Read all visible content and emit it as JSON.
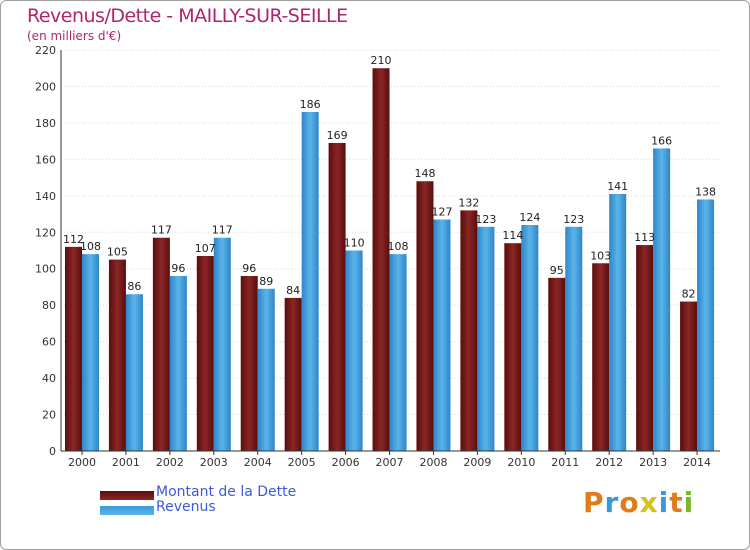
{
  "header": {
    "title": "Revenus/Dette - MAILLY-SUR-SEILLE",
    "subtitle": "(en milliers d'€)"
  },
  "colors": {
    "debt": "#7a1a1a",
    "revenue": "#3a9ad9",
    "title": "#b0246e",
    "legend_text": "#3b5bdb"
  },
  "legend": {
    "debt_label": "Montant de la Dette",
    "revenue_label": "Revenus"
  },
  "logo": {
    "text": "Proxiti"
  },
  "chart_data": {
    "type": "bar",
    "title": "Revenus/Dette - MAILLY-SUR-SEILLE",
    "subtitle": "(en milliers d'€)",
    "xlabel": "",
    "ylabel": "",
    "ylim": [
      0,
      220
    ],
    "yticks": [
      0,
      20,
      40,
      60,
      80,
      100,
      120,
      140,
      160,
      180,
      200,
      220
    ],
    "grid": true,
    "legend_position": "bottom-left",
    "categories": [
      "2000",
      "2001",
      "2002",
      "2003",
      "2004",
      "2005",
      "2006",
      "2007",
      "2008",
      "2009",
      "2010",
      "2011",
      "2012",
      "2013",
      "2014"
    ],
    "series": [
      {
        "name": "Montant de la Dette",
        "values": [
          112,
          105,
          117,
          107,
          96,
          84,
          169,
          210,
          148,
          132,
          114,
          95,
          103,
          113,
          82
        ]
      },
      {
        "name": "Revenus",
        "values": [
          108,
          86,
          96,
          117,
          89,
          186,
          110,
          108,
          127,
          123,
          124,
          123,
          141,
          166,
          138
        ]
      }
    ]
  }
}
